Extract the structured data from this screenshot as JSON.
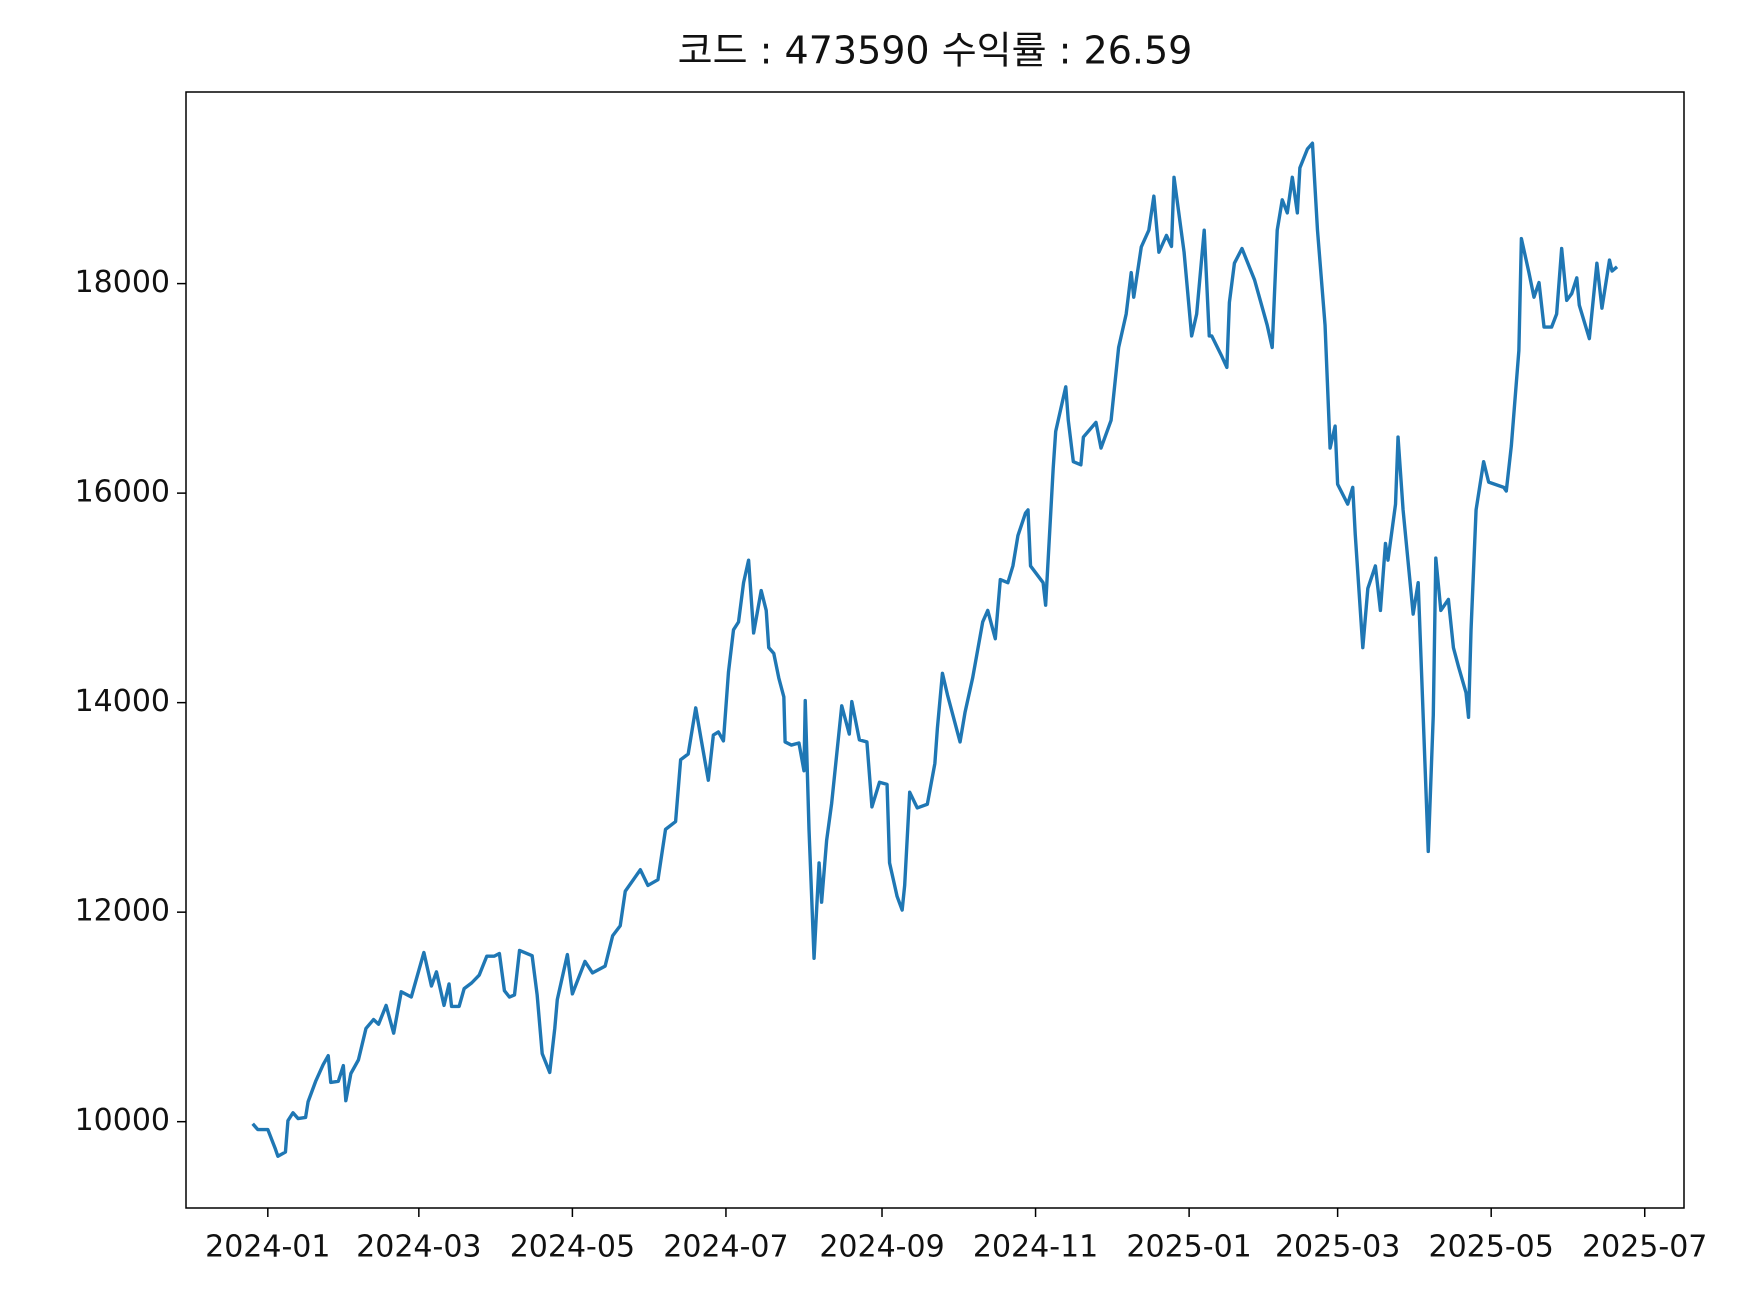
{
  "chart_data": {
    "type": "line",
    "title": "코드 : 473590 수익률 : 26.59",
    "color": "#1f77b4",
    "x": [
      -6,
      -4,
      0,
      3,
      4,
      7,
      8,
      10,
      12,
      15,
      16,
      19,
      22,
      24,
      25,
      28,
      30,
      31,
      33,
      36,
      39,
      42,
      44,
      47,
      50,
      53,
      57,
      62,
      65,
      67,
      70,
      72,
      73,
      76,
      78,
      81,
      84,
      87,
      90,
      92,
      94,
      96,
      98,
      100,
      105,
      107,
      109,
      112,
      114,
      115,
      119,
      121,
      126,
      129,
      134,
      137,
      140,
      142,
      148,
      151,
      155,
      158,
      162,
      164,
      167,
      170,
      172,
      175,
      177,
      179,
      181,
      183,
      185,
      187,
      189,
      191,
      193,
      196,
      198,
      199,
      201,
      203,
      205,
      205.5,
      208,
      211,
      213,
      213.5,
      215,
      217,
      219,
      220,
      222,
      224,
      228,
      231,
      232,
      235,
      238,
      240,
      243,
      246,
      247,
      250,
      252,
      253,
      255,
      258,
      262,
      265,
      266,
      268,
      270,
      275,
      277,
      280,
      284,
      286,
      289,
      291,
      294,
      296,
      298,
      301,
      302,
      303,
      308,
      309,
      312,
      313,
      317,
      318,
      320,
      323,
      324,
      329,
      331,
      335,
      338,
      341,
      343,
      344,
      347,
      350,
      352,
      354,
      357,
      359,
      360,
      364,
      367,
      369,
      372,
      374,
      375,
      379,
      381,
      382,
      384,
      387,
      392,
      397,
      399,
      401,
      403,
      405,
      407,
      409,
      410,
      413,
      415,
      417,
      420,
      422,
      424,
      425,
      429,
      431,
      432,
      435,
      437,
      440,
      442,
      444,
      445,
      448,
      449,
      451,
      455,
      457,
      459,
      461,
      463,
      464,
      466,
      469,
      471,
      473,
      476,
      477,
      478,
      480,
      483,
      485,
      491,
      492,
      494,
      497,
      498,
      501,
      503,
      505,
      507,
      510,
      512,
      514,
      516,
      518,
      520,
      521,
      525,
      528,
      530,
      533,
      534,
      536
    ],
    "values": [
      9980,
      9925,
      9925,
      9740,
      9670,
      9710,
      10010,
      10085,
      10030,
      10040,
      10190,
      10385,
      10545,
      10630,
      10375,
      10385,
      10535,
      10200,
      10460,
      10590,
      10890,
      10975,
      10930,
      11110,
      10845,
      11240,
      11190,
      11615,
      11295,
      11430,
      11110,
      11315,
      11100,
      11100,
      11270,
      11325,
      11400,
      11580,
      11580,
      11605,
      11250,
      11190,
      11210,
      11635,
      11585,
      11210,
      10650,
      10470,
      10890,
      11165,
      11595,
      11220,
      11530,
      11420,
      11485,
      11775,
      11870,
      12200,
      12405,
      12255,
      12310,
      12790,
      12865,
      13455,
      13510,
      13950,
      13670,
      13260,
      13690,
      13720,
      13635,
      14290,
      14695,
      14770,
      15145,
      15360,
      14665,
      15070,
      14880,
      14525,
      14470,
      14235,
      14055,
      13625,
      13595,
      13615,
      13350,
      14020,
      12790,
      11560,
      12470,
      12095,
      12685,
      13040,
      13970,
      13700,
      14010,
      13645,
      13625,
      13005,
      13240,
      13220,
      12470,
      12150,
      12020,
      12255,
      13145,
      12995,
      13030,
      13420,
      13755,
      14280,
      14075,
      13625,
      13910,
      14235,
      14770,
      14880,
      14610,
      15175,
      15145,
      15305,
      15595,
      15810,
      15840,
      15305,
      15145,
      14930,
      16235,
      16590,
      17015,
      16695,
      16300,
      16270,
      16535,
      16675,
      16430,
      16695,
      17390,
      17710,
      18105,
      17870,
      18350,
      18510,
      18835,
      18300,
      18460,
      18355,
      19015,
      18300,
      17500,
      17710,
      18510,
      17500,
      17500,
      17305,
      17200,
      17820,
      18195,
      18335,
      18035,
      17605,
      17390,
      18510,
      18800,
      18675,
      19015,
      18675,
      19105,
      19285,
      19340,
      18510,
      17605,
      16430,
      16640,
      16085,
      15895,
      16055,
      15605,
      14525,
      15090,
      15305,
      14880,
      15520,
      15360,
      15895,
      16535,
      15840,
      14845,
      15145,
      13860,
      12580,
      13880,
      15380,
      14880,
      14985,
      14525,
      14345,
      14095,
      13860,
      14695,
      15840,
      16300,
      16105,
      16055,
      16020,
      16450,
      17360,
      18430,
      18105,
      17870,
      18010,
      17585,
      17585,
      17710,
      18335,
      17840,
      17905,
      18055,
      17795,
      17475,
      18195,
      17765,
      18225,
      18120,
      18160
    ],
    "xlim": [
      -32.5,
      562.6
    ],
    "xticks": [
      {
        "value": 0,
        "label": "2024-01"
      },
      {
        "value": 60,
        "label": "2024-03"
      },
      {
        "value": 121,
        "label": "2024-05"
      },
      {
        "value": 182,
        "label": "2024-07"
      },
      {
        "value": 244,
        "label": "2024-09"
      },
      {
        "value": 305,
        "label": "2024-11"
      },
      {
        "value": 366,
        "label": "2025-01"
      },
      {
        "value": 425,
        "label": "2025-03"
      },
      {
        "value": 486,
        "label": "2025-05"
      },
      {
        "value": 547,
        "label": "2025-07"
      }
    ],
    "ylim": [
      9176,
      19829
    ],
    "yticks": [
      10000,
      12000,
      14000,
      16000,
      18000
    ]
  }
}
